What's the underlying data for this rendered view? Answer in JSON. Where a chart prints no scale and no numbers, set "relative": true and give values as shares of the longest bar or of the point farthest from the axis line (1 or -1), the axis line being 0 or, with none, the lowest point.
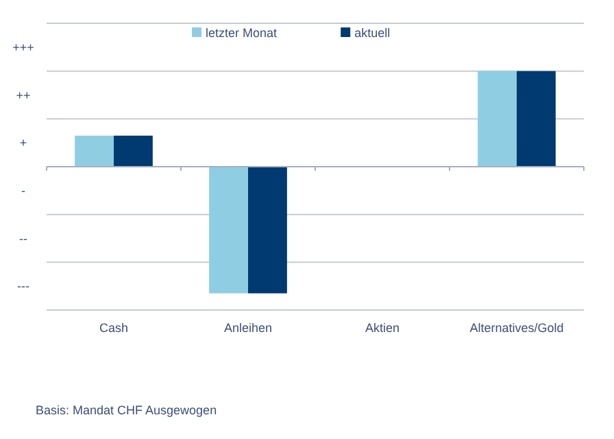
{
  "chart_data": {
    "type": "bar",
    "relative": true,
    "categories": [
      "Cash",
      "Anleihen",
      "Aktien",
      "Alternatives/Gold"
    ],
    "series": [
      {
        "name": "letzter Monat",
        "color": "#8fcde3",
        "values": [
          0.245,
          -1,
          0,
          0.755
        ]
      },
      {
        "name": "aktuell",
        "color": "#003a70",
        "values": [
          0.245,
          -1,
          0,
          0.755
        ]
      }
    ],
    "grid": "y",
    "legend": "top",
    "annotations": [
      "+++",
      "++",
      "+",
      "-",
      "--",
      "---",
      "Basis: Mandat CHF Ausgewogen"
    ]
  }
}
